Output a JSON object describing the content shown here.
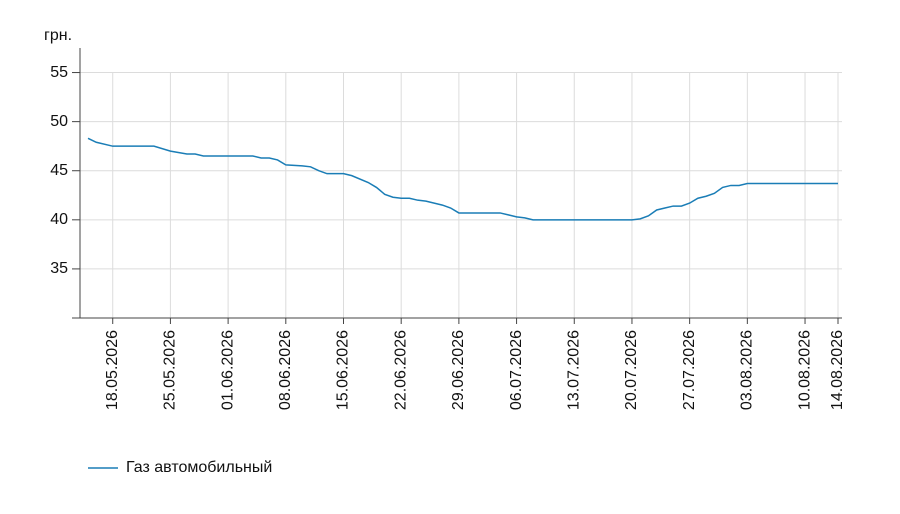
{
  "chart_data": {
    "type": "line",
    "y_label": "грн.",
    "x": [
      "15.05.2026",
      "16.05.2026",
      "18.05.2026",
      "23.05.2026",
      "25.05.2026",
      "27.05.2026",
      "28.05.2026",
      "29.05.2026",
      "04.06.2026",
      "05.06.2026",
      "06.06.2026",
      "07.06.2026",
      "08.06.2026",
      "10.06.2026",
      "11.06.2026",
      "12.06.2026",
      "13.06.2026",
      "15.06.2026",
      "16.06.2026",
      "18.06.2026",
      "19.06.2026",
      "20.06.2026",
      "21.06.2026",
      "22.06.2026",
      "23.06.2026",
      "24.06.2026",
      "25.06.2026",
      "27.06.2026",
      "28.06.2026",
      "29.06.2026",
      "04.07.2026",
      "05.07.2026",
      "06.07.2026",
      "07.07.2026",
      "08.07.2026",
      "20.07.2026",
      "21.07.2026",
      "22.07.2026",
      "23.07.2026",
      "24.07.2026",
      "25.07.2026",
      "26.07.2026",
      "27.07.2026",
      "28.07.2026",
      "29.07.2026",
      "30.07.2026",
      "31.07.2026",
      "01.08.2026",
      "02.08.2026",
      "03.08.2026",
      "14.08.2026"
    ],
    "series": [
      {
        "name": "Газ автомобильный",
        "color": "#1a7db6",
        "values": [
          48.3,
          47.9,
          47.5,
          47.5,
          47.0,
          46.7,
          46.7,
          46.5,
          46.5,
          46.3,
          46.3,
          46.1,
          45.6,
          45.5,
          45.4,
          45.0,
          44.7,
          44.7,
          44.5,
          43.8,
          43.3,
          42.6,
          42.3,
          42.2,
          42.2,
          42.0,
          41.9,
          41.5,
          41.2,
          40.7,
          40.7,
          40.5,
          40.3,
          40.2,
          40.0,
          40.0,
          40.1,
          40.4,
          41.0,
          41.2,
          41.4,
          41.4,
          41.7,
          42.2,
          42.4,
          42.7,
          43.3,
          43.5,
          43.5,
          43.7,
          43.7
        ]
      }
    ],
    "xlim": [
      "15.05.2026",
      "14.08.2026"
    ],
    "xticks": [
      "18.05.2026",
      "25.05.2026",
      "01.06.2026",
      "08.06.2026",
      "15.06.2026",
      "22.06.2026",
      "29.06.2026",
      "06.07.2026",
      "13.07.2026",
      "20.07.2026",
      "27.07.2026",
      "03.08.2026",
      "10.08.2026",
      "14.08.2026"
    ],
    "ylim": [
      30,
      57.5
    ],
    "yticks": [
      35,
      40,
      45,
      50,
      55
    ],
    "grid": true,
    "legend": "bottom-left"
  }
}
